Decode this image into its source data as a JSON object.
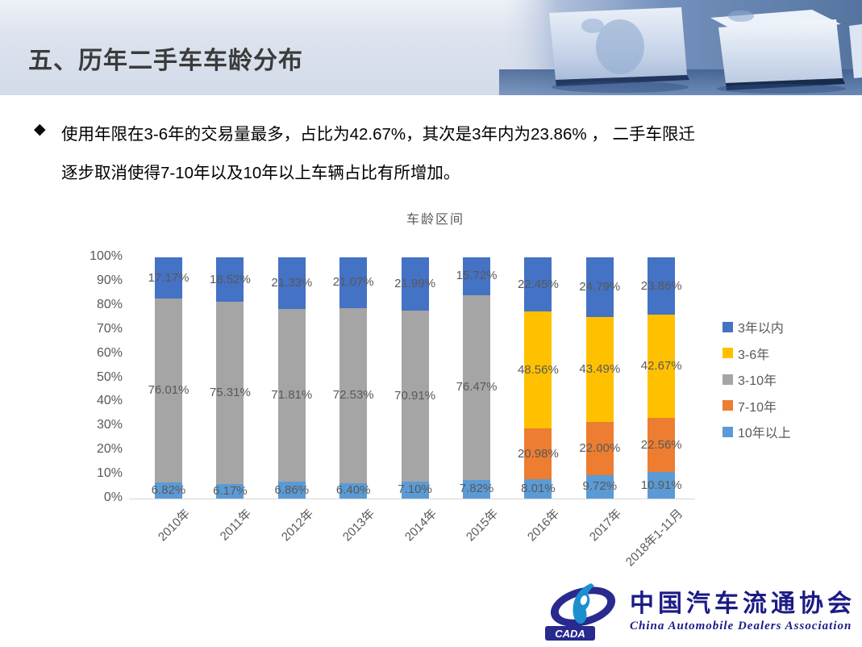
{
  "slide": {
    "header": {
      "title": "五、历年二手车车龄分布"
    },
    "bullet": {
      "marker": "◆",
      "lines": [
        "使用年限在3-6年的交易量最多，占比为42.67%，其次是3年内为23.86% ， 二手车限迁",
        "逐步取消使得7-10年以及10年以上车辆占比有所增加。"
      ]
    },
    "footer_logo": {
      "abbr": "CADA",
      "cn": "中国汽车流通协会",
      "en": "China Automobile Dealers Association"
    }
  },
  "chart_data": {
    "type": "bar",
    "stacked": true,
    "title": "车龄区间",
    "categories": [
      "2010年",
      "2011年",
      "2012年",
      "2013年",
      "2014年",
      "2015年",
      "2016年",
      "2017年",
      "2018年1-11月"
    ],
    "series": [
      {
        "name": "3年以内",
        "color": "#4472C4",
        "values": [
          17.17,
          18.52,
          21.33,
          21.07,
          21.99,
          15.72,
          22.45,
          24.79,
          23.86
        ]
      },
      {
        "name": "3-6年",
        "color": "#FFC000",
        "values": [
          null,
          null,
          null,
          null,
          null,
          null,
          48.56,
          43.49,
          42.67
        ]
      },
      {
        "name": "3-10年",
        "color": "#A5A5A5",
        "values": [
          76.01,
          75.31,
          71.81,
          72.53,
          70.91,
          76.47,
          null,
          null,
          null
        ]
      },
      {
        "name": "7-10年",
        "color": "#ED7D31",
        "values": [
          null,
          null,
          null,
          null,
          null,
          null,
          20.98,
          22.0,
          22.56
        ]
      },
      {
        "name": "10年以上",
        "color": "#5B9BD5",
        "values": [
          6.82,
          6.17,
          6.86,
          6.4,
          7.1,
          7.82,
          8.01,
          9.72,
          10.91
        ]
      }
    ],
    "stack_order_bottom_to_top": [
      "10年以上",
      "7-10年",
      "3-10年",
      "3-6年",
      "3年以内"
    ],
    "legend_order": [
      "3年以内",
      "3-6年",
      "3-10年",
      "7-10年",
      "10年以上"
    ],
    "legend_position": "right",
    "ylim": [
      0,
      100
    ],
    "ytick_step": 10,
    "ytick_suffix": "%",
    "grid": false,
    "data_label_decimals": 2,
    "data_label_suffix": "%",
    "text_color": "#595959"
  }
}
